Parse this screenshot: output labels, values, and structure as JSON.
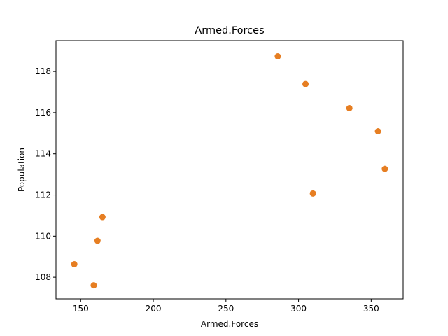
{
  "chart_data": {
    "type": "scatter",
    "title": "Armed.Forces",
    "xlabel": "Armed.Forces",
    "ylabel": "Population",
    "xlim": [
      133,
      372
    ],
    "ylim": [
      106.95,
      119.5
    ],
    "xticks": [
      150,
      200,
      250,
      300,
      350
    ],
    "yticks": [
      108,
      110,
      112,
      114,
      116,
      118
    ],
    "grid": false,
    "marker_color": "#e67e22",
    "series": [
      {
        "x": [
          159.0,
          145.6,
          161.6,
          165.0,
          309.9,
          359.4,
          354.7,
          335.0,
          304.8,
          285.7
        ],
        "y": [
          107.608,
          108.632,
          109.773,
          110.929,
          112.075,
          113.27,
          115.094,
          116.219,
          117.388,
          118.734
        ]
      }
    ]
  }
}
